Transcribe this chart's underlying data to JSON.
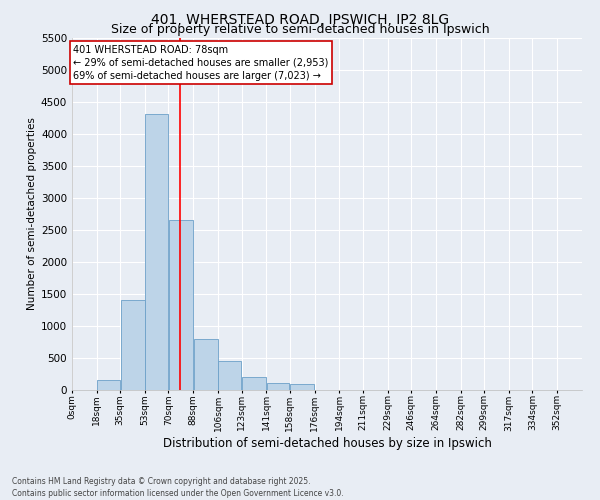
{
  "title_line1": "401, WHERSTEAD ROAD, IPSWICH, IP2 8LG",
  "title_line2": "Size of property relative to semi-detached houses in Ipswich",
  "xlabel": "Distribution of semi-detached houses by size in Ipswich",
  "ylabel": "Number of semi-detached properties",
  "annotation_line1": "401 WHERSTEAD ROAD: 78sqm",
  "annotation_line2": "← 29% of semi-detached houses are smaller (2,953)",
  "annotation_line3": "69% of semi-detached houses are larger (7,023) →",
  "footer_line1": "Contains HM Land Registry data © Crown copyright and database right 2025.",
  "footer_line2": "Contains public sector information licensed under the Open Government Licence v3.0.",
  "bin_edges": [
    0,
    18,
    35,
    53,
    70,
    88,
    106,
    123,
    141,
    158,
    176,
    194,
    211,
    229,
    246,
    264,
    282,
    299,
    317,
    334,
    352
  ],
  "bin_labels": [
    "0sqm",
    "18sqm",
    "35sqm",
    "53sqm",
    "70sqm",
    "88sqm",
    "106sqm",
    "123sqm",
    "141sqm",
    "158sqm",
    "176sqm",
    "194sqm",
    "211sqm",
    "229sqm",
    "246sqm",
    "264sqm",
    "282sqm",
    "299sqm",
    "317sqm",
    "334sqm",
    "352sqm"
  ],
  "bar_heights": [
    0,
    150,
    1400,
    4300,
    2650,
    800,
    450,
    200,
    110,
    100,
    0,
    0,
    0,
    0,
    0,
    0,
    0,
    0,
    0,
    0
  ],
  "bar_color": "#bdd4e8",
  "bar_edge_color": "#6ca0c8",
  "red_line_x": 78,
  "ylim": [
    0,
    5500
  ],
  "yticks": [
    0,
    500,
    1000,
    1500,
    2000,
    2500,
    3000,
    3500,
    4000,
    4500,
    5000,
    5500
  ],
  "bg_color": "#e8edf4",
  "plot_bg_color": "#e8edf4",
  "grid_color": "#ffffff",
  "title_fontsize": 10,
  "subtitle_fontsize": 9,
  "ylabel_fontsize": 7.5,
  "xlabel_fontsize": 8.5,
  "annotation_fontsize": 7,
  "xtick_fontsize": 6.5,
  "ytick_fontsize": 7.5,
  "annotation_box_color": "#ffffff",
  "annotation_box_edge_color": "#cc0000",
  "footer_fontsize": 5.5,
  "figsize": [
    6.0,
    5.0
  ],
  "dpi": 100
}
